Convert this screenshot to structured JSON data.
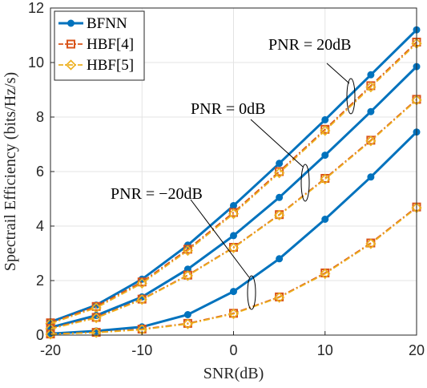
{
  "chart_data": {
    "type": "line",
    "xlabel": "SNR(dB)",
    "ylabel": "Spectrail Efficiency (bits/Hz/s)",
    "xlim": [
      -20,
      20
    ],
    "ylim": [
      0,
      12
    ],
    "x_ticks": [
      -20,
      -10,
      0,
      10,
      20
    ],
    "y_ticks": [
      0,
      2,
      4,
      6,
      8,
      10,
      12
    ],
    "grid": true,
    "legend_position": "top-left",
    "x": [
      -20,
      -15,
      -10,
      -5,
      0,
      5,
      10,
      15,
      20
    ],
    "legend": [
      {
        "label": "BFNN",
        "color": "#0072BD",
        "marker": "circle"
      },
      {
        "label": "HBF[4]",
        "color": "#D95319",
        "marker": "square"
      },
      {
        "label": "HBF[5]",
        "color": "#EDB120",
        "marker": "diamond"
      }
    ],
    "series": [
      {
        "group": "PNR = 20dB",
        "method": "BFNN",
        "color": "#0072BD",
        "marker": "circle",
        "values": [
          0.48,
          1.1,
          2.05,
          3.3,
          4.75,
          6.3,
          7.9,
          9.55,
          11.2
        ]
      },
      {
        "group": "PNR = 20dB",
        "method": "HBF[4]",
        "color": "#D95319",
        "marker": "square",
        "values": [
          0.45,
          1.05,
          1.95,
          3.15,
          4.5,
          6.0,
          7.55,
          9.15,
          10.75
        ]
      },
      {
        "group": "PNR = 20dB",
        "method": "HBF[5]",
        "color": "#EDB120",
        "marker": "diamond",
        "values": [
          0.42,
          1.0,
          1.9,
          3.1,
          4.45,
          5.95,
          7.5,
          9.1,
          10.7
        ]
      },
      {
        "group": "PNR = 0dB",
        "method": "BFNN",
        "color": "#0072BD",
        "marker": "circle",
        "values": [
          0.28,
          0.72,
          1.4,
          2.42,
          3.65,
          5.05,
          6.6,
          8.2,
          9.85
        ]
      },
      {
        "group": "PNR = 0dB",
        "method": "HBF[4]",
        "color": "#D95319",
        "marker": "square",
        "values": [
          0.25,
          0.65,
          1.32,
          2.2,
          3.22,
          4.42,
          5.75,
          7.15,
          8.65
        ]
      },
      {
        "group": "PNR = 0dB",
        "method": "HBF[5]",
        "color": "#EDB120",
        "marker": "diamond",
        "values": [
          0.23,
          0.63,
          1.3,
          2.18,
          3.2,
          4.4,
          5.72,
          7.12,
          8.62
        ]
      },
      {
        "group": "PNR = −20dB",
        "method": "BFNN",
        "color": "#0072BD",
        "marker": "circle",
        "values": [
          0.05,
          0.15,
          0.3,
          0.75,
          1.6,
          2.8,
          4.25,
          5.8,
          7.45
        ]
      },
      {
        "group": "PNR = −20dB",
        "method": "HBF[4]",
        "color": "#D95319",
        "marker": "square",
        "values": [
          0.04,
          0.1,
          0.22,
          0.43,
          0.8,
          1.4,
          2.28,
          3.38,
          4.7
        ]
      },
      {
        "group": "PNR = −20dB",
        "method": "HBF[5]",
        "color": "#EDB120",
        "marker": "diamond",
        "values": [
          0.03,
          0.09,
          0.2,
          0.41,
          0.78,
          1.38,
          2.25,
          3.35,
          4.67
        ]
      }
    ],
    "annotations": [
      {
        "text": "PNR = 20dB"
      },
      {
        "text": "PNR = 0dB"
      },
      {
        "text": "PNR = −20dB"
      }
    ]
  }
}
